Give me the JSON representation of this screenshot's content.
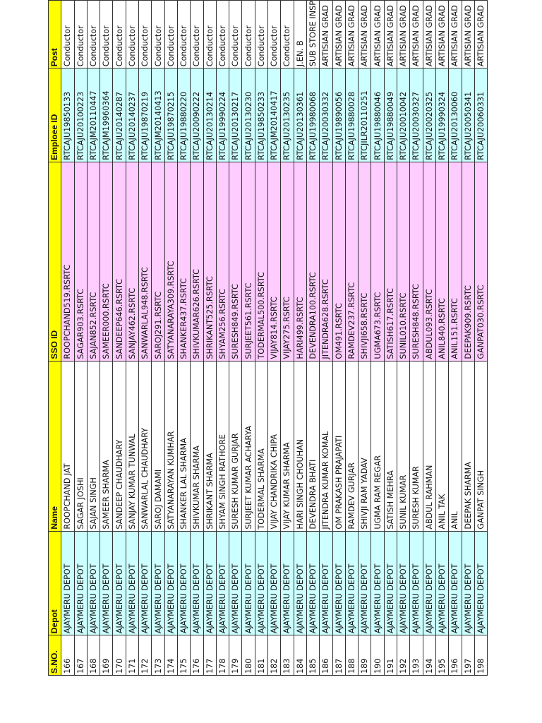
{
  "colors": {
    "header_bg": "#ffff00",
    "depot_bg": "#ccffff",
    "sso_bg": "#ffccff",
    "emp_bg": "#ccffff",
    "plain_bg": "#ffffff"
  },
  "table": {
    "headers": {
      "sno": "S.NO.",
      "depot": "Depot",
      "name": "Name",
      "sso": "SSO ID",
      "emp": "Emploee ID",
      "post": "Post"
    },
    "rows": [
      {
        "sno": "166",
        "depot": "AJAYMERU DEPOT",
        "name": "ROOPCHAND JAT",
        "sso": "ROOPCHAND519.RSRTC",
        "emp": "RTCAJU19850133",
        "post": "Conductor"
      },
      {
        "sno": "167",
        "depot": "AJAYMERU DEPOT",
        "name": "SAGAR JOSHI",
        "sso": "SAGAR903.RSRTC",
        "emp": "RTCAJU20100223",
        "post": "Conductor"
      },
      {
        "sno": "168",
        "depot": "AJAYMERU DEPOT",
        "name": "SAJAN SINGH",
        "sso": "SAJAN852.RSRTC",
        "emp": "RTCAJM20110447",
        "post": "Conductor"
      },
      {
        "sno": "169",
        "depot": "AJAYMERU DEPOT",
        "name": "SAMEER SHARMA",
        "sso": "SAMEER000.RSRTC",
        "emp": "RTCAJM19960364",
        "post": "Conductor"
      },
      {
        "sno": "170",
        "depot": "AJAYMERU DEPOT",
        "name": "SANDEEP CHAUDHARY",
        "sso": "SANDEEP646.RSRTC",
        "emp": "RTCAJU20140287",
        "post": "Conductor"
      },
      {
        "sno": "171",
        "depot": "AJAYMERU DEPOT",
        "name": "SANJAY KUMAR TUNWAL",
        "sso": "SANJAY462.RSRTC",
        "emp": "RTCAJU20140237",
        "post": "Conductor"
      },
      {
        "sno": "172",
        "depot": "AJAYMERU DEPOT",
        "name": "SANWARLAL CHAUDHARY",
        "sso": "SANWARLAL948.RSRTC",
        "emp": "RTCAJU19870219",
        "post": "Conductor"
      },
      {
        "sno": "173",
        "depot": "AJAYMERU DEPOT",
        "name": "SAROJ DAMAMI",
        "sso": "SAROJ291.RSRTC",
        "emp": "RTCAJM20140413",
        "post": "Conductor"
      },
      {
        "sno": "174",
        "depot": "AJAYMERU DEPOT",
        "name": "SATYANARAYAN KUMHAR",
        "sso": "SATYANARAYA309.RSRTC",
        "emp": "RTCAJU19870215",
        "post": "Conductor"
      },
      {
        "sno": "175",
        "depot": "AJAYMERU DEPOT",
        "name": "SHANKER LAL SHARMA",
        "sso": "SHANKER437.RSRTC",
        "emp": "RTCAJU19880220",
        "post": "Conductor"
      },
      {
        "sno": "176",
        "depot": "AJAYMERU DEPOT",
        "name": "SHIVKUMAR SHARMA",
        "sso": "SHIVKUMAR626.RSRTC",
        "emp": "RTCAJU20090222",
        "post": "Conductor"
      },
      {
        "sno": "177",
        "depot": "AJAYMERU DEPOT",
        "name": "SHRIKANT SHARMA",
        "sso": "SHRIKANT525.RSRTC",
        "emp": "RTCAJU20130214",
        "post": "Conductor"
      },
      {
        "sno": "178",
        "depot": "AJAYMERU DEPOT",
        "name": "SHYAM SINGH RATHORE",
        "sso": "SHYAM256.RSRTC",
        "emp": "RTCAJU19990224",
        "post": "Conductor"
      },
      {
        "sno": "179",
        "depot": "AJAYMERU DEPOT",
        "name": "SURESH KUMAR GURJAR",
        "sso": "SURESH849.RSRTC",
        "emp": "RTCAJU20130217",
        "post": "Conductor"
      },
      {
        "sno": "180",
        "depot": "AJAYMERU DEPOT",
        "name": "SURJEET KUMAR ACHARYA",
        "sso": "SURJEET561.RSRTC",
        "emp": "RTCAJU20130230",
        "post": "Conductor"
      },
      {
        "sno": "181",
        "depot": "AJAYMERU DEPOT",
        "name": "TODERMAL SHARMA",
        "sso": "TODERMAL500.RSRTC",
        "emp": "RTCAJU19850233",
        "post": "Conductor"
      },
      {
        "sno": "182",
        "depot": "AJAYMERU DEPOT",
        "name": "VIJAY CHANDRIKA CHIPA",
        "sso": "VIJAY814.RSRTC",
        "emp": "RTCAJM20140417",
        "post": "Conductor"
      },
      {
        "sno": "183",
        "depot": "AJAYMERU DEPOT",
        "name": "VIJAY KUMAR SHARMA",
        "sso": "VIJAY275.RSRTC",
        "emp": "RTCAJU20130235",
        "post": "Conductor"
      },
      {
        "sno": "184",
        "depot": "AJAYMERU DEPOT",
        "name": "HARI SINGH CHOUHAN",
        "sso": "HARI499.RSRTC",
        "emp": "RTCAJU20130361",
        "post": "J.EN. B"
      },
      {
        "sno": "185",
        "depot": "AJAYMERU DEPOT",
        "name": "DEVENDRA BHATI",
        "sso": "DEVENDRA100.RSRTC",
        "emp": "RTCAJU19980068",
        "post": "SUB STORE INSP"
      },
      {
        "sno": "186",
        "depot": "AJAYMERU DEPOT",
        "name": "JITENDRA KUMAR KOMAL",
        "sso": "JITENDRA628.RSRTC",
        "emp": "RTCAJU20030332",
        "post": "ARTISIAN GRAD"
      },
      {
        "sno": "187",
        "depot": "AJAYMERU DEPOT",
        "name": "OM PRAKASH PRAJAPATI",
        "sso": "OM491.RSRTC",
        "emp": "RTCAJU19890056",
        "post": "ARTISIAN GRAD"
      },
      {
        "sno": "188",
        "depot": "AJAYMERU DEPOT",
        "name": "RAMDEV GURJAR",
        "sso": "RAMDEV237.RSRTC",
        "emp": "RTCAJU19880028",
        "post": "ARTISIAN GRAD"
      },
      {
        "sno": "189",
        "depot": "AJAYMERU DEPOT",
        "name": "SHIVJI RAM YADAV",
        "sso": "SHIVJI658.RSRTC",
        "emp": "RTCJILR20110251",
        "post": "ARTISIAN GRAD"
      },
      {
        "sno": "190",
        "depot": "AJAYMERU DEPOT",
        "name": "UGMA RAM REGAR",
        "sso": "UGMA673.RSRTC",
        "emp": "RTCAJU19880046",
        "post": "ARTISIAN GRAD"
      },
      {
        "sno": "191",
        "depot": "AJAYMERU DEPOT",
        "name": "SATISH MEHRA",
        "sso": "SATISH617.RSRTC",
        "emp": "RTCAJU19880049",
        "post": "ARTISIAN GRAD"
      },
      {
        "sno": "192",
        "depot": "AJAYMERU DEPOT",
        "name": "SUNIL KUMAR",
        "sso": "SUNIL010.RSRTC",
        "emp": "RTCAJU20010042",
        "post": "ARTISIAN GRAD"
      },
      {
        "sno": "193",
        "depot": "AJAYMERU DEPOT",
        "name": "SURESH KUMAR",
        "sso": "SURESH848.RSRTC",
        "emp": "RTCAJU20030327",
        "post": "ARTISIAN GRAD"
      },
      {
        "sno": "194",
        "depot": "AJAYMERU DEPOT",
        "name": "ABDUL RAHMAN",
        "sso": "ABDUL093.RSRTC",
        "emp": "RTCAJU20020325",
        "post": "ARTISIAN GRAD"
      },
      {
        "sno": "195",
        "depot": "AJAYMERU DEPOT",
        "name": "ANIL TAK",
        "sso": "ANIL840.RSRTC",
        "emp": "RTCAJU19990324",
        "post": "ARTISIAN GRAD"
      },
      {
        "sno": "196",
        "depot": "AJAYMERU DEPOT",
        "name": "ANIL",
        "sso": "ANIL151.RSRTC",
        "emp": "RTCAJU20130060",
        "post": "ARTISIAN GRAD"
      },
      {
        "sno": "197",
        "depot": "AJAYMERU DEPOT",
        "name": "DEEPAK SHARMA",
        "sso": "DEEPAK909.RSRTC",
        "emp": "RTCAJU20050341",
        "post": "ARTISIAN GRAD"
      },
      {
        "sno": "198",
        "depot": "AJAYMERU DEPOT",
        "name": "GANPAT SINGH",
        "sso": "GANPAT030.RSRTC",
        "emp": "RTCAJU20060331",
        "post": "ARTISIAN GRAD"
      }
    ]
  }
}
